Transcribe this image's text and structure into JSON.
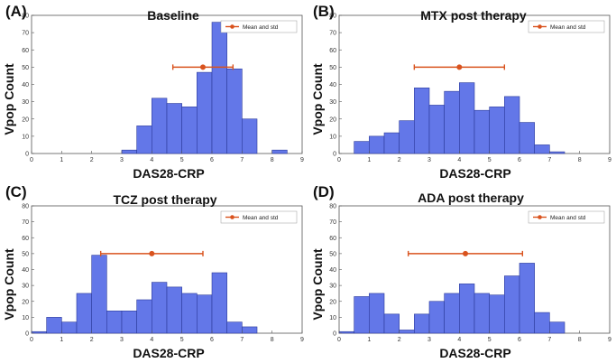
{
  "figure": {
    "legend_label": "Mean and std"
  },
  "colors": {
    "bar_fill": "#6377e8",
    "bar_edge": "#2b3a9a",
    "mean_marker": "#d9531e",
    "axis": "#555555"
  },
  "chart_data": [
    {
      "type": "bar",
      "panel": "(A)",
      "title": "Baseline",
      "xlabel": "DAS28-CRP",
      "ylabel": "Vpop Count",
      "xlim": [
        0,
        9
      ],
      "ylim": [
        0,
        80
      ],
      "xticks": [
        0,
        1,
        2,
        3,
        4,
        5,
        6,
        7,
        8,
        9
      ],
      "yticks": [
        0,
        10,
        20,
        30,
        40,
        50,
        60,
        70,
        80
      ],
      "bin_width": 0.5,
      "bin_starts": [
        3.0,
        3.5,
        4.0,
        4.5,
        5.0,
        5.5,
        6.0,
        6.5,
        7.0,
        7.5,
        8.0
      ],
      "values": [
        2,
        16,
        32,
        29,
        27,
        47,
        76,
        49,
        20,
        0,
        2
      ],
      "mean": 5.7,
      "std": 1.0,
      "marker_y": 50,
      "legend": [
        "Mean and std"
      ]
    },
    {
      "type": "bar",
      "panel": "(B)",
      "title": "MTX post therapy",
      "xlabel": "DAS28-CRP",
      "ylabel": "Vpop Count",
      "xlim": [
        0,
        9
      ],
      "ylim": [
        0,
        80
      ],
      "xticks": [
        0,
        1,
        2,
        3,
        4,
        5,
        6,
        7,
        8,
        9
      ],
      "yticks": [
        0,
        10,
        20,
        30,
        40,
        50,
        60,
        70,
        80
      ],
      "bin_width": 0.5,
      "bin_starts": [
        0.5,
        1.0,
        1.5,
        2.0,
        2.5,
        3.0,
        3.5,
        4.0,
        4.5,
        5.0,
        5.5,
        6.0,
        6.5,
        7.0
      ],
      "values": [
        7,
        10,
        12,
        19,
        38,
        28,
        36,
        41,
        25,
        27,
        33,
        18,
        5,
        1
      ],
      "mean": 4.0,
      "std": 1.5,
      "marker_y": 50,
      "legend": [
        "Mean and std"
      ]
    },
    {
      "type": "bar",
      "panel": "(C)",
      "title": "TCZ   post therapy",
      "xlabel": "DAS28-CRP",
      "ylabel": "Vpop Count",
      "xlim": [
        0,
        9
      ],
      "ylim": [
        0,
        80
      ],
      "xticks": [
        0,
        1,
        2,
        3,
        4,
        5,
        6,
        7,
        8,
        9
      ],
      "yticks": [
        0,
        10,
        20,
        30,
        40,
        50,
        60,
        70,
        80
      ],
      "bin_width": 0.5,
      "bin_starts": [
        0.0,
        0.5,
        1.0,
        1.5,
        2.0,
        2.5,
        3.0,
        3.5,
        4.0,
        4.5,
        5.0,
        5.5,
        6.0,
        6.5,
        7.0
      ],
      "values": [
        1,
        10,
        7,
        25,
        49,
        14,
        14,
        21,
        32,
        29,
        25,
        24,
        38,
        7,
        4
      ],
      "mean": 4.0,
      "std": 1.7,
      "marker_y": 50,
      "legend": [
        "Mean and std"
      ]
    },
    {
      "type": "bar",
      "panel": "(D)",
      "title": "ADA post therapy",
      "xlabel": "DAS28-CRP",
      "ylabel": "Vpop Count",
      "xlim": [
        0,
        9
      ],
      "ylim": [
        0,
        80
      ],
      "xticks": [
        0,
        1,
        2,
        3,
        4,
        5,
        6,
        7,
        8,
        9
      ],
      "yticks": [
        0,
        10,
        20,
        30,
        40,
        50,
        60,
        70,
        80
      ],
      "bin_width": 0.5,
      "bin_starts": [
        0.0,
        0.5,
        1.0,
        1.5,
        2.0,
        2.5,
        3.0,
        3.5,
        4.0,
        4.5,
        5.0,
        5.5,
        6.0,
        6.5,
        7.0
      ],
      "values": [
        1,
        23,
        25,
        12,
        2,
        12,
        20,
        25,
        31,
        25,
        24,
        36,
        44,
        13,
        7
      ],
      "mean": 4.2,
      "std": 1.9,
      "marker_y": 50,
      "legend": [
        "Mean and std"
      ]
    }
  ]
}
